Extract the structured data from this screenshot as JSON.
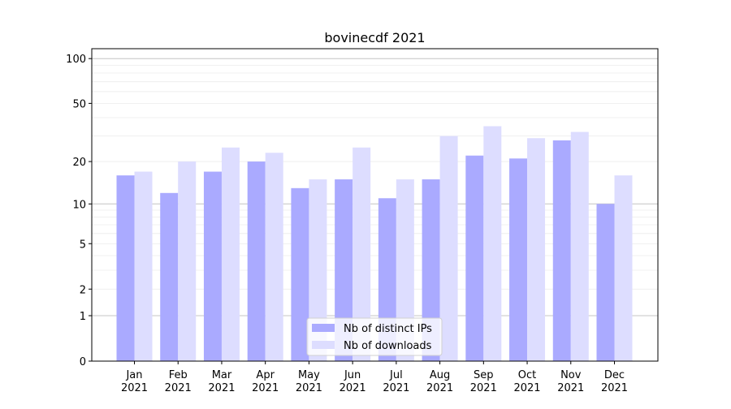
{
  "chart_data": {
    "type": "bar",
    "title": "bovinecdf 2021",
    "xlabel": "",
    "ylabel": "",
    "yscale": "symlog (log10(1+y))",
    "ylim": [
      0,
      116
    ],
    "yticks": [
      0,
      1,
      2,
      5,
      10,
      20,
      50,
      100
    ],
    "ytick_labels": [
      "0",
      "1",
      "2",
      "5",
      "10",
      "20",
      "50",
      "100"
    ],
    "categories": [
      "Jan\n2021",
      "Feb\n2021",
      "Mar\n2021",
      "Apr\n2021",
      "May\n2021",
      "Jun\n2021",
      "Jul\n2021",
      "Aug\n2021",
      "Sep\n2021",
      "Oct\n2021",
      "Nov\n2021",
      "Dec\n2021"
    ],
    "series": [
      {
        "name": "Nb of distinct IPs",
        "color": "#aaaaff",
        "values": [
          16,
          12,
          17,
          20,
          13,
          15,
          11,
          15,
          22,
          21,
          28,
          10
        ]
      },
      {
        "name": "Nb of downloads",
        "color": "#ddddff",
        "values": [
          17,
          20,
          25,
          23,
          15,
          25,
          15,
          30,
          35,
          29,
          32,
          16
        ]
      }
    ],
    "legend": "bottom-center",
    "grid": true
  }
}
